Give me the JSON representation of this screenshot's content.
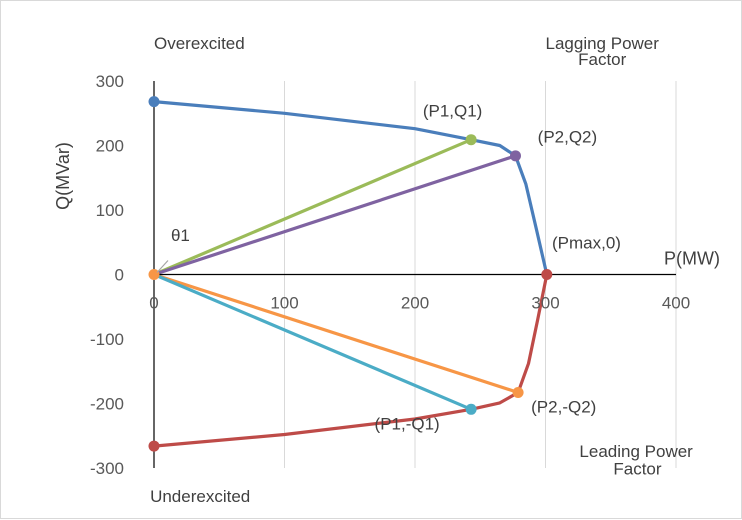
{
  "chart_data": {
    "type": "line",
    "xlabel": "P(MW)",
    "ylabel": "Q(MVar)",
    "xlim": [
      0,
      400
    ],
    "ylim": [
      -300,
      300
    ],
    "x_ticks": [
      0,
      100,
      200,
      300,
      400
    ],
    "y_ticks": [
      300,
      200,
      100,
      0,
      -100,
      -200,
      -300
    ],
    "x_tick_labels": [
      "0",
      "100",
      "200",
      "300",
      "400"
    ],
    "y_tick_labels": [
      "300",
      "200",
      "100",
      "0",
      "-100",
      "-200",
      "-300"
    ],
    "grid": "vertical",
    "series": [
      {
        "color": "#4a7ebb",
        "points": [
          [
            0,
            268
          ],
          [
            100,
            250
          ],
          [
            200,
            226
          ],
          [
            243,
            209
          ],
          [
            265,
            200
          ],
          [
            277,
            184
          ],
          [
            285,
            140
          ],
          [
            293,
            70
          ],
          [
            301,
            0
          ]
        ]
      },
      {
        "color": "#be4b48",
        "points": [
          [
            0,
            -266
          ],
          [
            100,
            -248
          ],
          [
            200,
            -224
          ],
          [
            243,
            -209
          ],
          [
            265,
            -199
          ],
          [
            279,
            -183
          ],
          [
            287,
            -138
          ],
          [
            294,
            -70
          ],
          [
            301,
            0
          ]
        ]
      },
      {
        "color": "#9bbb59",
        "points": [
          [
            0,
            0
          ],
          [
            243,
            209
          ]
        ]
      },
      {
        "color": "#7f63a1",
        "points": [
          [
            0,
            0
          ],
          [
            277,
            184
          ]
        ]
      },
      {
        "color": "#f79646",
        "points": [
          [
            0,
            0
          ],
          [
            279,
            -183
          ]
        ]
      },
      {
        "color": "#4bacc6",
        "points": [
          [
            0,
            0
          ],
          [
            243,
            -209
          ]
        ]
      }
    ],
    "markers": [
      {
        "x": 0,
        "y": 268,
        "color": "#4a7ebb"
      },
      {
        "x": 243,
        "y": 209,
        "color": "#9bbb59"
      },
      {
        "x": 277,
        "y": 184,
        "color": "#7f63a1"
      },
      {
        "x": 301,
        "y": 0,
        "color": "#be4b48"
      },
      {
        "x": 279,
        "y": -183,
        "color": "#f79646"
      },
      {
        "x": 243,
        "y": -209,
        "color": "#4bacc6"
      },
      {
        "x": 0,
        "y": -266,
        "color": "#be4b48"
      },
      {
        "x": 0,
        "y": 0,
        "color": "#f79646"
      }
    ],
    "annotations": [
      {
        "text": "Overexcited",
        "x": 0,
        "y": 350
      },
      {
        "text": "Lagging Power",
        "x": 300,
        "y": 350
      },
      {
        "text": "Factor",
        "x": 325,
        "y": 325
      },
      {
        "text": "(P1,Q1)",
        "x": 206,
        "y": 245
      },
      {
        "text": "(P2,Q2)",
        "x": 294,
        "y": 205
      },
      {
        "text": "θ1",
        "x": 13,
        "y": 52
      },
      {
        "text": "(Pmax,0)",
        "x": 305,
        "y": 40
      },
      {
        "text": "(P2,-Q2)",
        "x": 289,
        "y": -214
      },
      {
        "text": "(P1,-Q1)",
        "x": 169,
        "y": -240
      },
      {
        "text": "Leading Power",
        "x": 326,
        "y": -283
      },
      {
        "text": "Factor",
        "x": 352,
        "y": -310
      },
      {
        "text": "Underexcited",
        "x": -3,
        "y": -353
      }
    ]
  },
  "colors": {
    "grid": "#d9d9d9",
    "axis": "#000000"
  }
}
